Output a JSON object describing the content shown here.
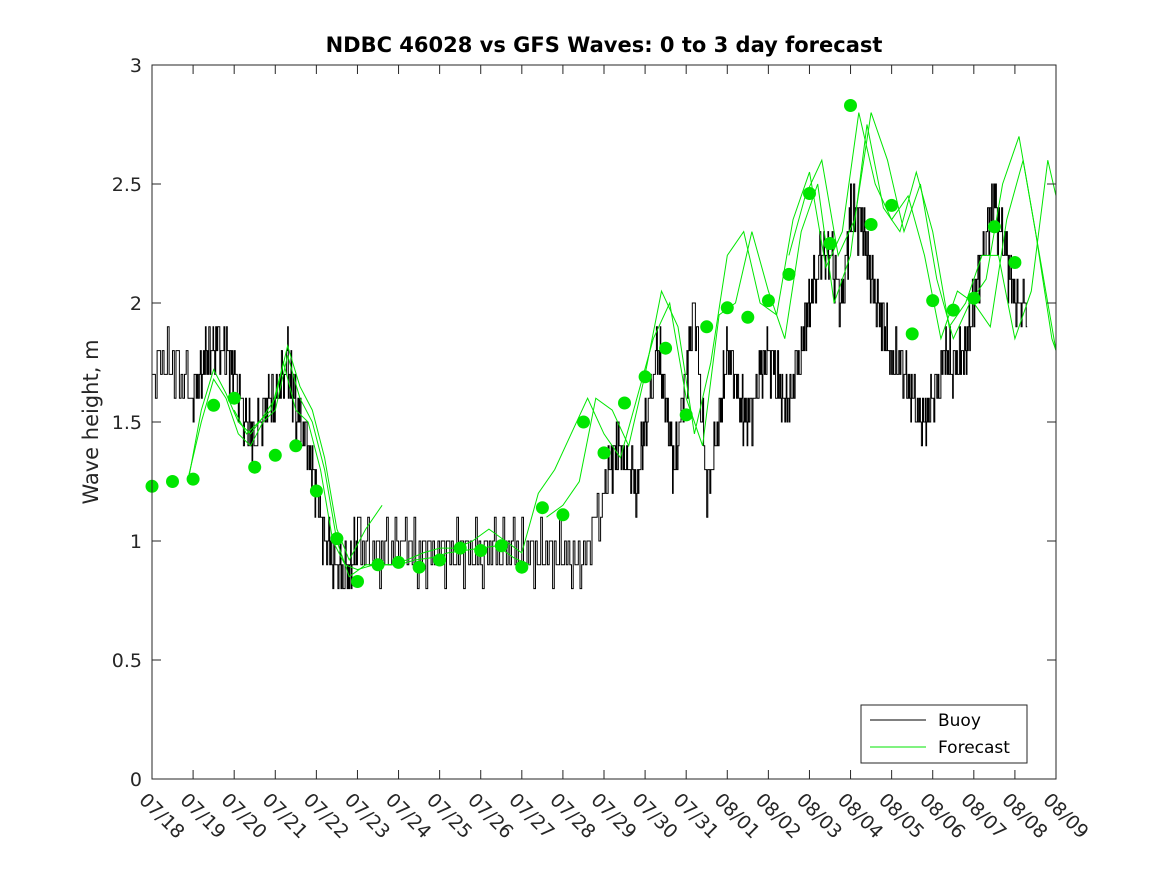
{
  "chart_data": {
    "type": "line",
    "title": "NDBC 46028 vs GFS Waves: 0 to 3 day forecast",
    "xlabel": "",
    "ylabel": "Wave height, m",
    "x_ticks": [
      "07/18",
      "07/19",
      "07/20",
      "07/21",
      "07/22",
      "07/23",
      "07/24",
      "07/25",
      "07/26",
      "07/27",
      "07/28",
      "07/29",
      "07/30",
      "07/31",
      "08/01",
      "08/02",
      "08/03",
      "08/04",
      "08/05",
      "08/06",
      "08/07",
      "08/08",
      "08/09"
    ],
    "y_ticks": [
      "0",
      "0.5",
      "1",
      "1.5",
      "2",
      "2.5",
      "3"
    ],
    "xlim": [
      0,
      22
    ],
    "ylim": [
      0,
      3
    ],
    "grid": false,
    "legend": {
      "position": "bottom-right",
      "entries": [
        "Buoy",
        "Forecast"
      ]
    },
    "colors": {
      "buoy": "#000000",
      "forecast": "#00e600",
      "axis": "#262626"
    },
    "buoy_approx": {
      "note_units": "x = days since 07/18, y = m",
      "x": [
        0,
        0.5,
        1,
        1.3,
        1.5,
        1.8,
        2,
        2.3,
        2.5,
        2.8,
        3,
        3.3,
        3.5,
        3.8,
        4,
        4.2,
        4.5,
        4.8,
        5,
        5.5,
        6,
        6.5,
        7,
        7.5,
        8,
        8.5,
        9,
        9.5,
        10,
        10.5,
        11,
        11.3,
        11.5,
        11.8,
        12,
        12.3,
        12.5,
        12.7,
        13,
        13.2,
        13.5,
        13.8,
        14,
        14.3,
        14.5,
        14.8,
        15,
        15.3,
        15.5,
        15.8,
        16,
        16.3,
        16.5,
        16.8,
        17,
        17.3,
        17.5,
        17.8,
        18,
        18.3,
        18.5,
        18.8,
        19,
        19.3,
        19.5,
        19.8,
        20,
        20.3,
        20.5,
        20.8,
        21,
        21.3
      ],
      "y": [
        1.7,
        1.75,
        1.6,
        1.8,
        1.8,
        1.8,
        1.7,
        1.5,
        1.4,
        1.6,
        1.6,
        1.75,
        1.55,
        1.4,
        1.2,
        1.0,
        0.88,
        0.88,
        1.0,
        0.95,
        1.0,
        0.95,
        0.95,
        0.97,
        0.95,
        0.95,
        0.95,
        0.95,
        0.95,
        0.9,
        1.2,
        1.4,
        1.35,
        1.2,
        1.5,
        1.8,
        1.6,
        1.3,
        1.7,
        2.0,
        1.2,
        1.5,
        1.8,
        1.6,
        1.5,
        1.7,
        1.8,
        1.6,
        1.6,
        1.8,
        2.0,
        2.2,
        2.2,
        2.0,
        2.4,
        2.3,
        2.1,
        1.9,
        1.75,
        1.7,
        1.6,
        1.5,
        1.6,
        1.8,
        1.7,
        1.8,
        2.0,
        2.3,
        2.4,
        2.2,
        2.0,
        2.0
      ]
    },
    "forecast_runs_approx": [
      {
        "x": [
          0.9,
          1.2,
          1.5,
          1.8,
          2.1,
          2.4,
          2.7,
          3.0,
          3.3,
          3.6,
          3.9,
          4.2,
          4.5,
          4.8,
          5.2,
          5.6,
          6.0,
          6.4,
          6.8,
          7.2,
          7.6,
          8.0,
          8.4,
          8.8,
          9.2
        ],
        "y": [
          1.28,
          1.5,
          1.68,
          1.6,
          1.45,
          1.4,
          1.5,
          1.55,
          1.78,
          1.6,
          1.5,
          1.3,
          1.0,
          0.85,
          0.9,
          0.9,
          0.9,
          0.92,
          0.93,
          0.95,
          0.96,
          0.97,
          0.98,
          0.93,
          0.9
        ]
      },
      {
        "x": [
          0.9,
          1.2,
          1.5,
          1.8,
          2.1,
          2.4,
          2.7,
          3.0,
          3.3,
          3.6,
          3.9,
          4.2,
          4.5,
          4.8,
          5.2,
          5.6
        ],
        "y": [
          1.27,
          1.55,
          1.72,
          1.62,
          1.5,
          1.45,
          1.52,
          1.6,
          1.82,
          1.65,
          1.55,
          1.35,
          1.05,
          0.92,
          1.05,
          1.15
        ]
      },
      {
        "x": [
          2.0,
          2.3,
          2.6,
          2.9,
          3.2,
          3.5,
          3.8,
          4.1,
          4.4,
          4.7,
          5.0,
          5.4,
          5.8,
          6.2,
          6.6,
          7.0,
          7.4,
          7.8,
          8.2,
          8.6,
          9.0,
          9.4,
          9.8,
          10.2,
          10.6,
          11.0,
          11.4,
          11.8,
          12.2,
          12.6,
          13.0,
          13.4,
          13.8,
          14.2,
          14.6,
          15.0,
          15.4,
          15.8,
          16.2,
          16.6,
          17.0,
          17.4,
          17.8,
          18.2,
          18.6,
          19.0,
          19.4,
          19.8,
          20.2,
          20.6,
          21.0,
          21.4,
          21.8,
          22.0
        ],
        "y": [
          1.55,
          1.45,
          1.5,
          1.55,
          1.75,
          1.55,
          1.5,
          1.3,
          1.0,
          0.9,
          0.88,
          0.9,
          0.9,
          0.92,
          0.95,
          0.97,
          0.97,
          1.0,
          1.05,
          1.0,
          0.95,
          1.2,
          1.3,
          1.45,
          1.6,
          1.45,
          1.35,
          1.6,
          1.85,
          2.0,
          1.6,
          1.4,
          1.95,
          2.0,
          2.3,
          2.05,
          1.85,
          2.3,
          2.5,
          2.0,
          2.2,
          2.75,
          2.4,
          2.3,
          2.55,
          2.3,
          1.9,
          2.0,
          2.2,
          2.2,
          1.85,
          2.05,
          2.6,
          2.45
        ]
      },
      {
        "x": [
          9.6,
          10.0,
          10.4,
          10.8,
          11.2,
          11.6,
          12.0,
          12.4,
          12.8,
          13.2,
          13.6,
          14.0,
          14.4,
          14.8,
          15.2,
          15.6,
          16.0,
          16.4,
          16.8,
          17.2,
          17.6,
          18.0,
          18.4,
          18.8,
          19.2,
          19.6,
          20.0,
          20.4,
          20.8,
          21.2,
          21.6,
          22.0
        ],
        "y": [
          1.1,
          1.15,
          1.25,
          1.6,
          1.55,
          1.4,
          1.7,
          2.05,
          1.9,
          1.45,
          1.75,
          2.2,
          2.3,
          2.0,
          1.95,
          2.35,
          2.55,
          2.15,
          2.3,
          2.8,
          2.5,
          2.35,
          2.45,
          2.2,
          1.85,
          2.05,
          2.0,
          1.9,
          2.35,
          2.6,
          2.2,
          1.8
        ]
      },
      {
        "x": [
          15.5,
          15.9,
          16.3,
          16.7,
          17.1,
          17.5,
          17.9,
          18.3,
          18.7,
          19.1,
          19.5,
          19.9,
          20.3,
          20.7,
          21.1,
          21.5,
          21.9,
          22.0
        ],
        "y": [
          2.2,
          2.45,
          2.6,
          2.2,
          2.35,
          2.8,
          2.6,
          2.3,
          2.5,
          2.1,
          1.85,
          2.0,
          2.1,
          2.5,
          2.7,
          2.3,
          1.85,
          1.8
        ]
      }
    ],
    "forecast_points": {
      "x": [
        0,
        0.5,
        1,
        1.5,
        2,
        2.5,
        3,
        3.5,
        4,
        4.5,
        5,
        5.5,
        6,
        6.5,
        7,
        7.5,
        8,
        8.5,
        9,
        9.5,
        10,
        10.5,
        11,
        11.5,
        12,
        12.5,
        13,
        13.5,
        14,
        14.5,
        15,
        15.5,
        16,
        16.5,
        17,
        17.5,
        18,
        18.5,
        19,
        19.5,
        20,
        20.5,
        21
      ],
      "y": [
        1.23,
        1.25,
        1.26,
        1.57,
        1.6,
        1.31,
        1.36,
        1.4,
        1.21,
        1.01,
        0.83,
        0.9,
        0.91,
        0.89,
        0.92,
        0.97,
        0.96,
        0.98,
        0.89,
        1.14,
        1.11,
        1.5,
        1.37,
        1.58,
        1.69,
        1.81,
        1.53,
        1.9,
        1.98,
        1.94,
        2.01,
        2.12,
        2.46,
        2.25,
        2.83,
        2.33,
        2.41,
        1.87,
        2.01,
        1.97,
        2.02,
        2.32,
        2.17
      ]
    }
  }
}
